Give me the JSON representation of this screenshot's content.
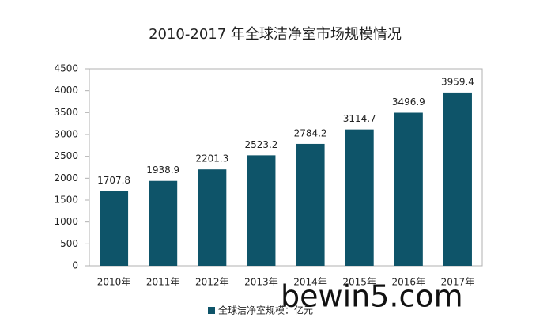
{
  "chart_data": {
    "type": "bar",
    "title": "2010-2017 年全球洁净室市场规模情况",
    "categories": [
      "2010年",
      "2011年",
      "2012年",
      "2013年",
      "2014年",
      "2015年",
      "2016年",
      "2017年"
    ],
    "series": [
      {
        "name": "全球洁净室规模：亿元",
        "color": "#0e5469",
        "values": [
          1707.8,
          1938.9,
          2201.3,
          2523.2,
          2784.2,
          3114.7,
          3496.9,
          3959.4
        ]
      }
    ],
    "ylim": [
      0,
      4500
    ],
    "yticks": [
      0,
      500,
      1000,
      1500,
      2000,
      2500,
      3000,
      3500,
      4000,
      4500
    ],
    "grid": false,
    "legend": "bottom",
    "watermark": "bewin5.com"
  }
}
